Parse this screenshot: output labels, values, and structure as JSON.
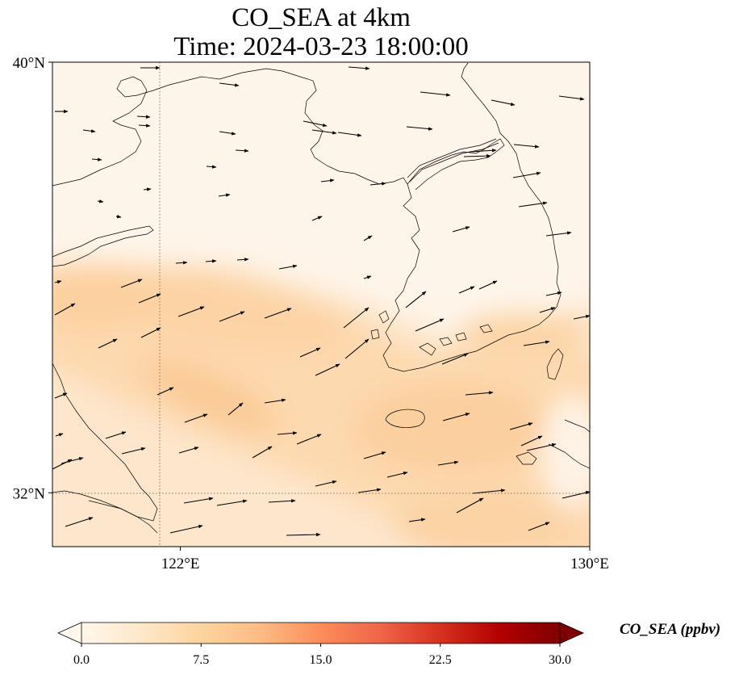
{
  "title": {
    "line1": "CO_SEA at 4km",
    "line2": "Time: 2024-03-23 18:00:00"
  },
  "map": {
    "lat_range": [
      31,
      40
    ],
    "lon_range": [
      119.5,
      130
    ],
    "lat_ticks": [
      {
        "value": 40,
        "label": "40°N"
      },
      {
        "value": 32,
        "label": "32°N"
      }
    ],
    "lon_ticks": [
      {
        "value": 122,
        "label": "122°E"
      },
      {
        "value": 130,
        "label": "130°E"
      }
    ],
    "gridlines": "dotted at 122°E and 32°N",
    "field": "CO_SEA",
    "field_colors": [
      "#fff7ec",
      "#fee8c8",
      "#fdd49e",
      "#fdbb84"
    ],
    "vectors": "wind vectors, predominantly westerly to west-southwesterly"
  },
  "colorbar": {
    "label": "CO_SEA (ppbv)",
    "min": 0,
    "max": 30,
    "extend": "both",
    "colormap": "Oranges-Red",
    "stops": [
      "#fff7ec",
      "#fee8c8",
      "#fdd49e",
      "#fdbb84",
      "#fc8d59",
      "#ef6548",
      "#d7301f",
      "#b30000",
      "#7f0000"
    ],
    "ticks": [
      {
        "value": 0,
        "label": "0.0"
      },
      {
        "value": 7.5,
        "label": "7.5"
      },
      {
        "value": 15,
        "label": "15.0"
      },
      {
        "value": 22.5,
        "label": "22.5"
      },
      {
        "value": 30,
        "label": "30.0"
      }
    ]
  }
}
